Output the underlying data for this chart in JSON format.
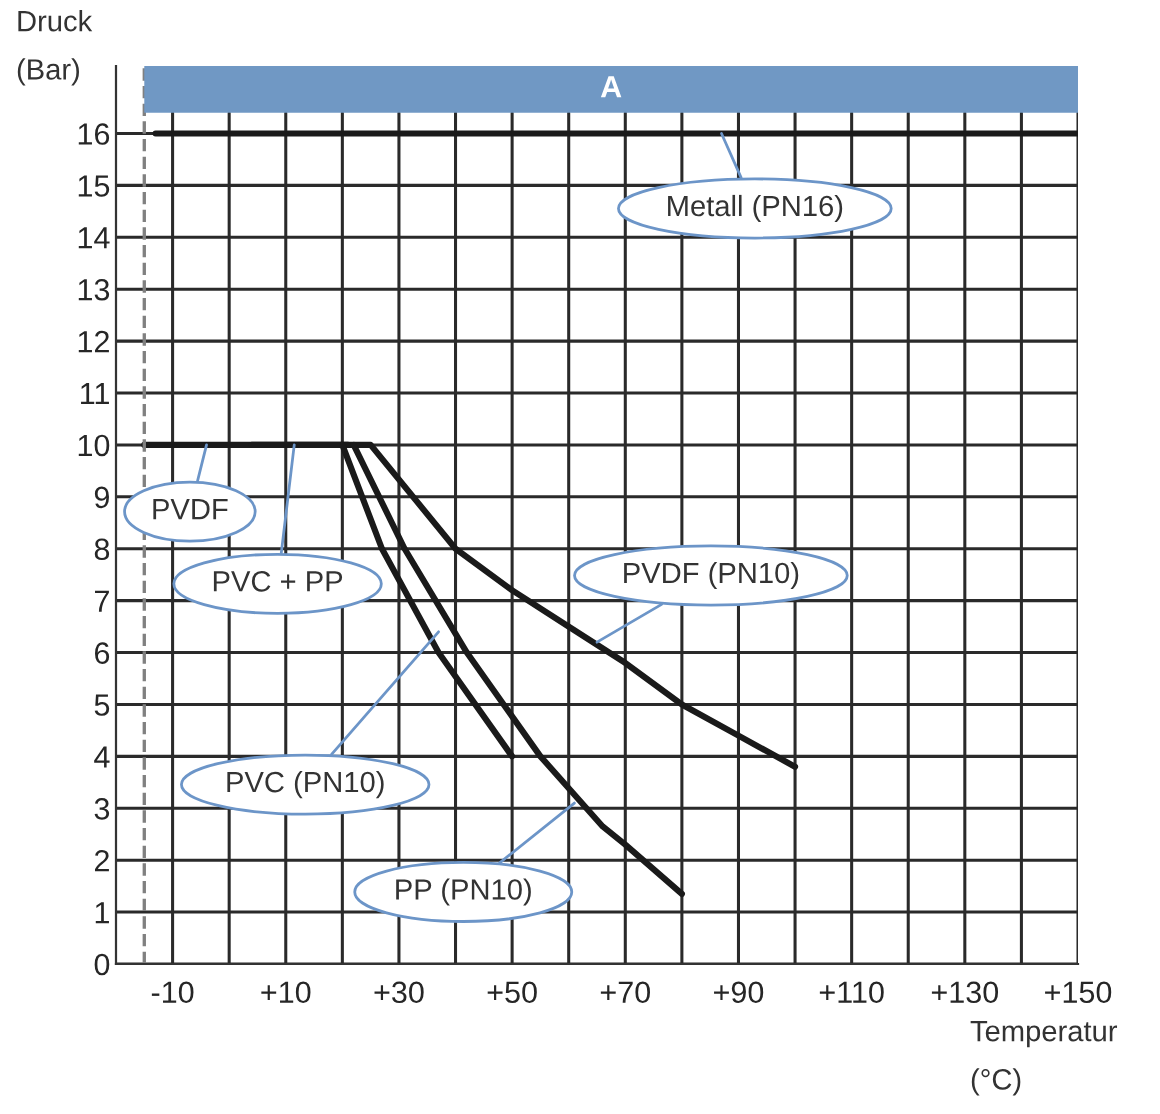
{
  "chart_data": {
    "type": "line",
    "xlabel": "Temperatur\n(°C)",
    "ylabel": "Druck\n(Bar)",
    "xlim": [
      -20,
      150
    ],
    "ylim": [
      0,
      17.3
    ],
    "xticks": [
      {
        "value": -10,
        "label": "-10"
      },
      {
        "value": 0,
        "label": null
      },
      {
        "value": 10,
        "label": "+10"
      },
      {
        "value": 20,
        "label": null
      },
      {
        "value": 30,
        "label": "+30"
      },
      {
        "value": 40,
        "label": null
      },
      {
        "value": 50,
        "label": "+50"
      },
      {
        "value": 60,
        "label": null
      },
      {
        "value": 70,
        "label": "+70"
      },
      {
        "value": 80,
        "label": null
      },
      {
        "value": 90,
        "label": "+90"
      },
      {
        "value": 100,
        "label": null
      },
      {
        "value": 110,
        "label": "+110"
      },
      {
        "value": 120,
        "label": null
      },
      {
        "value": 130,
        "label": "+130"
      },
      {
        "value": 140,
        "label": null
      },
      {
        "value": 150,
        "label": "+150"
      }
    ],
    "yticks": [
      0,
      1,
      2,
      3,
      4,
      5,
      6,
      7,
      8,
      9,
      10,
      11,
      12,
      13,
      14,
      15,
      16
    ],
    "grid": true,
    "legend": false,
    "marker": "none",
    "line_style": "solid",
    "series": [
      {
        "color": "#1a1a1a",
        "x": [
          -13,
          150
        ],
        "values": [
          16,
          16
        ]
      },
      {
        "color": "#1a1a1a",
        "x": [
          -15,
          25,
          40,
          50,
          60,
          70,
          80,
          90,
          100
        ],
        "values": [
          10,
          10,
          8.0,
          7.2,
          6.5,
          5.8,
          5.0,
          4.4,
          3.8
        ]
      },
      {
        "color": "#1a1a1a",
        "x": [
          4,
          21
        ],
        "values": [
          10,
          10
        ]
      },
      {
        "color": "#1a1a1a",
        "x": [
          20,
          27,
          37,
          50
        ],
        "values": [
          10,
          8,
          6,
          4
        ]
      },
      {
        "color": "#1a1a1a",
        "x": [
          22,
          31,
          42,
          55,
          66,
          70,
          80
        ],
        "values": [
          10,
          8,
          6,
          4,
          2.65,
          2.3,
          1.35
        ]
      }
    ],
    "ref_lines": [
      {
        "axis": "x",
        "value": -15,
        "label": null,
        "color": "#808080",
        "line_style": "dashed"
      }
    ],
    "bands": [
      {
        "axis": "y",
        "from": 16.4,
        "to": 17.3,
        "label": "A",
        "color": "#7098c4"
      }
    ],
    "annotations": [
      {
        "text": "Metall (PN16)",
        "x": 87,
        "y": 16
      },
      {
        "text": "PVDF",
        "x": -4,
        "y": 10
      },
      {
        "text": "PVC + PP",
        "x": 11.5,
        "y": 10
      },
      {
        "text": "PVC (PN10)",
        "x": 37,
        "y": 6.4
      },
      {
        "text": "PP (PN10)",
        "x": 61,
        "y": 3.1
      },
      {
        "text": "PVDF (PN10)",
        "x": 65,
        "y": 6.2
      }
    ]
  }
}
